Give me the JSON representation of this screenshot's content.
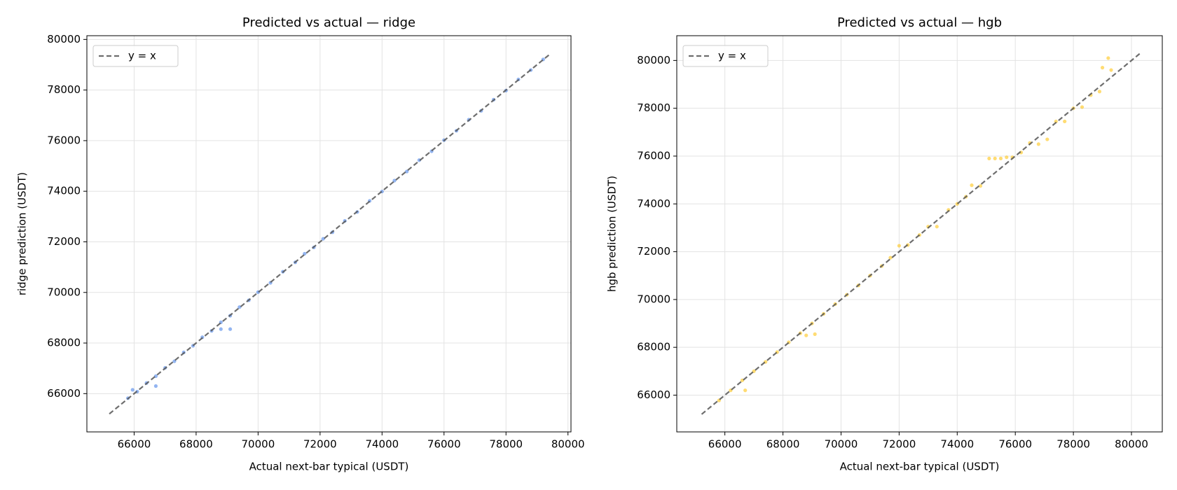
{
  "chart_data": [
    {
      "type": "scatter",
      "title": "Predicted vs actual — ridge",
      "x_label": "Actual next-bar typical (USDT)",
      "y_label": "ridge prediction (USDT)",
      "xlim": [
        64475,
        80097
      ],
      "ylim": [
        64487,
        80148
      ],
      "xticks": [
        66000,
        68000,
        70000,
        72000,
        74000,
        76000,
        78000,
        80000
      ],
      "yticks": [
        66000,
        68000,
        70000,
        72000,
        74000,
        76000,
        78000,
        80000
      ],
      "grid": true,
      "legend": "upper left",
      "series": [
        {
          "type": "scatter",
          "color": "#3a78e6",
          "x": [
            65800,
            66100,
            66400,
            66700,
            67000,
            67300,
            67600,
            67900,
            68200,
            68500,
            68800,
            69100,
            69400,
            69700,
            70000,
            70400,
            70800,
            71200,
            71500,
            71800,
            72100,
            72400,
            72800,
            73200,
            73600,
            74000,
            74400,
            74800,
            75200,
            75600,
            76000,
            76400,
            76800,
            77200,
            77600,
            78000,
            78400,
            78800,
            79200,
            66700,
            69100,
            68800,
            65950
          ],
          "values": [
            65820,
            66080,
            66420,
            66690,
            67020,
            67280,
            67630,
            67890,
            68230,
            68480,
            68820,
            69080,
            69420,
            69690,
            70010,
            70380,
            70820,
            71190,
            71530,
            71780,
            72120,
            72380,
            72830,
            73180,
            73620,
            73990,
            74420,
            74780,
            75230,
            75580,
            76020,
            76390,
            76830,
            77180,
            77620,
            77980,
            78420,
            78790,
            79210,
            66300,
            68550,
            68550,
            66150
          ]
        },
        {
          "type": "line",
          "name": "y = x",
          "color": "#555555",
          "dash": true,
          "x": [
            65200,
            79400
          ],
          "values": [
            65200,
            79400
          ]
        }
      ]
    },
    {
      "type": "scatter",
      "title": "Predicted vs actual — hgb",
      "x_label": "Actual next-bar typical (USDT)",
      "y_label": "hgb prediction (USDT)",
      "xlim": [
        64344,
        81061
      ],
      "ylim": [
        64462,
        81036
      ],
      "xticks": [
        66000,
        68000,
        70000,
        72000,
        74000,
        76000,
        78000,
        80000
      ],
      "yticks": [
        66000,
        68000,
        70000,
        72000,
        74000,
        76000,
        78000,
        80000
      ],
      "grid": true,
      "legend": "upper left",
      "series": [
        {
          "type": "scatter",
          "color": "#ffbf00",
          "x": [
            65800,
            66200,
            66600,
            67000,
            67400,
            67800,
            68200,
            68600,
            69000,
            69400,
            69800,
            70200,
            70600,
            71000,
            71400,
            71700,
            72000,
            72300,
            72700,
            73000,
            73300,
            73700,
            74000,
            74300,
            74500,
            74800,
            75100,
            75300,
            75500,
            75700,
            75900,
            76200,
            76500,
            76800,
            77100,
            77400,
            77700,
            78000,
            78300,
            78600,
            78900,
            79000,
            79200,
            79300,
            66700,
            69100,
            68800
          ],
          "values": [
            65780,
            66200,
            66620,
            67000,
            67390,
            67800,
            68210,
            68590,
            69000,
            69400,
            69810,
            70200,
            70590,
            71000,
            71400,
            71750,
            72250,
            72280,
            72700,
            73050,
            73050,
            73750,
            74000,
            74300,
            74780,
            74750,
            75900,
            75900,
            75900,
            75950,
            75950,
            76150,
            76550,
            76500,
            76700,
            77450,
            77450,
            78000,
            78050,
            78550,
            78700,
            79700,
            80100,
            79600,
            66200,
            68550,
            68500
          ]
        },
        {
          "type": "line",
          "name": "y = x",
          "color": "#555555",
          "dash": true,
          "x": [
            65200,
            80300
          ],
          "values": [
            65200,
            80300
          ]
        }
      ]
    }
  ]
}
